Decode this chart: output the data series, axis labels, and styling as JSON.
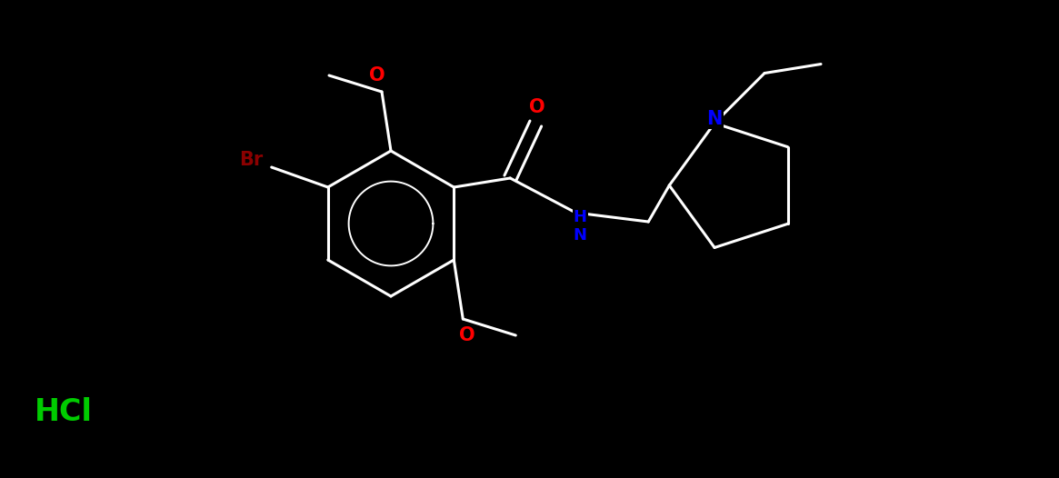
{
  "background_color": "#000000",
  "bond_color": "#ffffff",
  "bond_width": 2.2,
  "figsize": [
    11.65,
    5.26
  ],
  "dpi": 100,
  "atom_colors": {
    "O": "#ff0000",
    "N": "#0000ff",
    "Br": "#8b0000",
    "Cl": "#00cc00",
    "H": "#ffffff",
    "C": "#ffffff"
  },
  "font_size": 13,
  "font_size_large": 15
}
